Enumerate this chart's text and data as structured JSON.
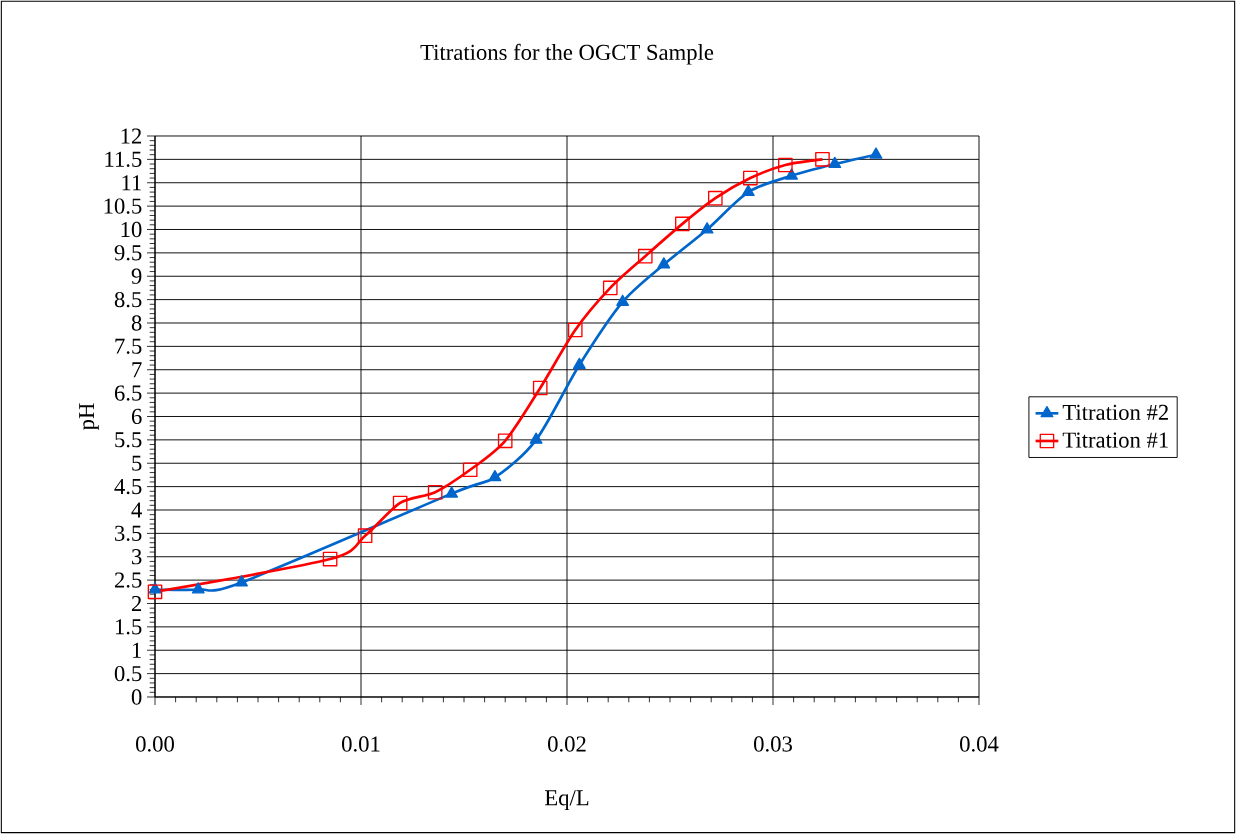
{
  "chart_data": {
    "type": "line",
    "title": "Titrations for the OGCT Sample",
    "xlabel": "Eq/L",
    "ylabel": "pH",
    "xlim": [
      0,
      0.04
    ],
    "xticks": [
      {
        "value": 0,
        "label": "0.00"
      },
      {
        "value": 0.01,
        "label": "0.01"
      },
      {
        "value": 0.02,
        "label": "0.02"
      },
      {
        "value": 0.03,
        "label": "0.03"
      },
      {
        "value": 0.04,
        "label": "0.04"
      }
    ],
    "ylim": [
      0,
      12
    ],
    "yticks": [
      0,
      0.5,
      1,
      1.5,
      2,
      2.5,
      3,
      3.5,
      4,
      4.5,
      5,
      5.5,
      6,
      6.5,
      7,
      7.5,
      8,
      8.5,
      9,
      9.5,
      10,
      10.5,
      11,
      11.5,
      12
    ],
    "grid": true,
    "legend": "right",
    "series": [
      {
        "name": "Titration #2",
        "color": "#0066cc",
        "marker": "triangle",
        "x": [
          0,
          0.0021,
          0.0042,
          0.0144,
          0.0165,
          0.0185,
          0.0206,
          0.0227,
          0.0247,
          0.0268,
          0.0288,
          0.0309,
          0.033,
          0.035
        ],
        "values": [
          2.3,
          2.3,
          2.45,
          4.35,
          4.7,
          5.5,
          7.1,
          8.45,
          9.25,
          10,
          10.8,
          11.15,
          11.4,
          11.6
        ]
      },
      {
        "name": "Titration #1",
        "color": "#ff0000",
        "marker": "square",
        "x": [
          0,
          0.0085,
          0.0102,
          0.0119,
          0.0136,
          0.0153,
          0.017,
          0.0187,
          0.0204,
          0.0221,
          0.0238,
          0.0256,
          0.0272,
          0.0289,
          0.0306,
          0.0324
        ],
        "values": [
          2.25,
          2.95,
          3.45,
          4.15,
          4.38,
          4.86,
          5.48,
          6.61,
          7.85,
          8.75,
          9.43,
          10.12,
          10.67,
          11.1,
          11.38,
          11.5
        ]
      }
    ]
  }
}
